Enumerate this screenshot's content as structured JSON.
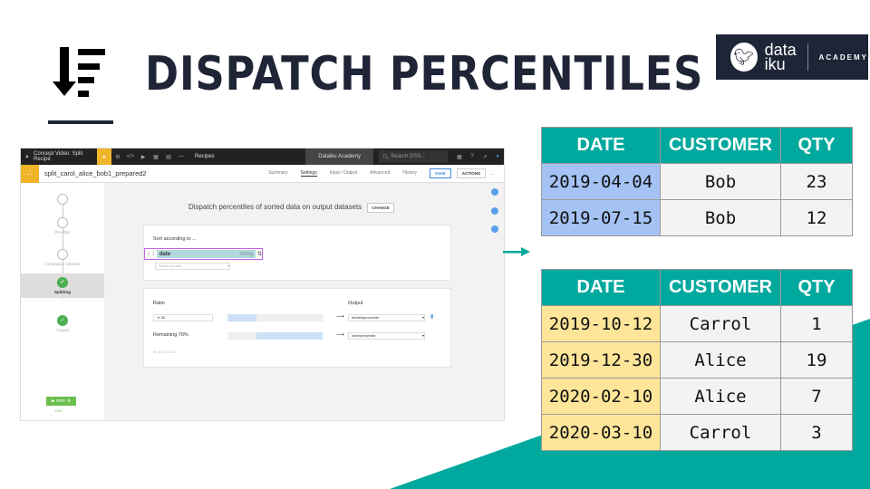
{
  "slide": {
    "title": "DISPATCH PERCENTILES",
    "icon": "sort-descending-icon",
    "logo": {
      "line1": "data",
      "line2": "iku",
      "suffix": "ACADEMY"
    },
    "colors": {
      "title": "#1f2537",
      "accent": "#00a89d",
      "first_tab_hl": "#a4c2f4",
      "second_tab_hl": "#ffe599"
    }
  },
  "tables": [
    {
      "headers": [
        "DATE",
        "CUSTOMER",
        "QTY"
      ],
      "rows": [
        [
          "2019-04-04",
          "Bob",
          "23"
        ],
        [
          "2019-07-15",
          "Bob",
          "12"
        ]
      ]
    },
    {
      "headers": [
        "DATE",
        "CUSTOMER",
        "QTY"
      ],
      "rows": [
        [
          "2019-10-12",
          "Carrol",
          "1"
        ],
        [
          "2019-12-30",
          "Alice",
          "19"
        ],
        [
          "2020-02-10",
          "Alice",
          "7"
        ],
        [
          "2020-03-10",
          "Carrol",
          "3"
        ]
      ]
    }
  ],
  "app": {
    "project": "Concept Video: Split Recipe",
    "nav_recipes": "Recipes",
    "instance": "Dataiku Academy",
    "search_placeholder": "Search DSS...",
    "recipe_name": "split_carol_alice_bob1_prepared2",
    "tabs": [
      "Summary",
      "Settings",
      "Input / Output",
      "Advanced",
      "History"
    ],
    "active_tab": "Settings",
    "save": "SAVE",
    "actions": "ACTIONS",
    "steps": [
      "Pre-filter",
      "Computed columns",
      "Splitting",
      "Output"
    ],
    "run": "RUN",
    "run_engine": "DSS",
    "mode_title": "Dispatch percentiles of sorted data on output datasets",
    "change": "CHANGE",
    "sort": {
      "label": "Sort according to ...",
      "index": "1",
      "column": "date",
      "type": "string",
      "select_placeholder": "Select column"
    },
    "ratio": {
      "label": "Ratio",
      "output_label": "Output",
      "value": "% 30",
      "value_pct": 30,
      "remaining": "Remaining 70%",
      "remaining_pct": 70,
      "output1": "thirtiethpercentile",
      "output2": "otherpercentile",
      "add": "ADD RATIO"
    }
  }
}
